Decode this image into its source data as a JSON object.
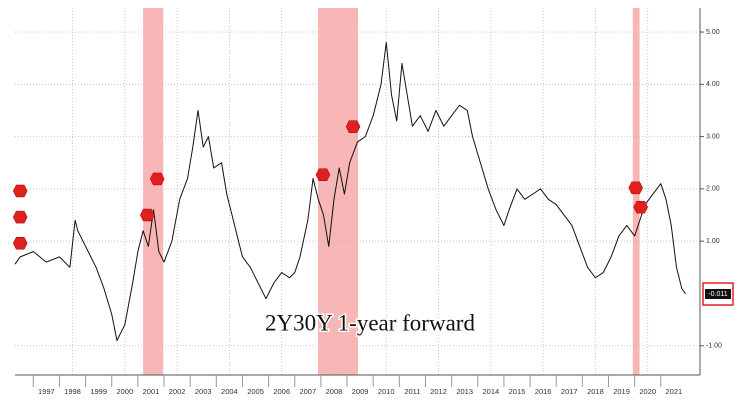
{
  "chart_data": {
    "type": "line",
    "annotation": "2Y30Y 1-year forward",
    "x": [
      1996.3,
      1996.5,
      1997,
      1997.5,
      1998,
      1998.4,
      1998.6,
      1998.7,
      1999,
      1999.4,
      1999.7,
      2000,
      2000.2,
      2000.5,
      2000.8,
      2001,
      2001.2,
      2001.4,
      2001.6,
      2001.8,
      2002,
      2002.3,
      2002.6,
      2002.9,
      2003.1,
      2003.3,
      2003.5,
      2003.7,
      2003.9,
      2004.2,
      2004.4,
      2004.7,
      2005,
      2005.3,
      2005.6,
      2005.9,
      2006.2,
      2006.5,
      2006.8,
      2007,
      2007.2,
      2007.5,
      2007.7,
      2007.9,
      2008.1,
      2008.3,
      2008.5,
      2008.7,
      2008.9,
      2009.1,
      2009.4,
      2009.7,
      2010,
      2010.3,
      2010.5,
      2010.7,
      2010.9,
      2011.1,
      2011.3,
      2011.5,
      2011.8,
      2012.1,
      2012.4,
      2012.7,
      2013,
      2013.3,
      2013.6,
      2013.8,
      2014.1,
      2014.4,
      2014.7,
      2015,
      2015.2,
      2015.5,
      2015.8,
      2016.1,
      2016.4,
      2016.7,
      2017,
      2017.3,
      2017.6,
      2017.9,
      2018.2,
      2018.5,
      2018.8,
      2019.1,
      2019.4,
      2019.7,
      2020,
      2020.2,
      2020.4,
      2020.7,
      2021,
      2021.2,
      2021.4,
      2021.6,
      2021.8,
      2021.95
    ],
    "series": [
      {
        "color": "#111111",
        "values": [
          0.56,
          0.7,
          0.8,
          0.6,
          0.7,
          0.5,
          1.4,
          1.2,
          0.9,
          0.5,
          0.1,
          -0.4,
          -0.9,
          -0.6,
          0.2,
          0.8,
          1.2,
          0.9,
          1.6,
          0.8,
          0.6,
          1.0,
          1.8,
          2.2,
          2.8,
          3.5,
          2.8,
          3.0,
          2.4,
          2.5,
          1.9,
          1.3,
          0.7,
          0.5,
          0.2,
          -0.1,
          0.2,
          0.4,
          0.3,
          0.4,
          0.7,
          1.4,
          2.2,
          1.8,
          1.5,
          0.9,
          1.8,
          2.4,
          1.9,
          2.5,
          2.9,
          3.0,
          3.4,
          4.0,
          4.8,
          3.8,
          3.3,
          4.4,
          3.8,
          3.2,
          3.4,
          3.1,
          3.5,
          3.2,
          3.4,
          3.6,
          3.5,
          3.0,
          2.5,
          2.0,
          1.6,
          1.3,
          1.6,
          2.0,
          1.8,
          1.9,
          2.0,
          1.8,
          1.7,
          1.5,
          1.3,
          0.9,
          0.5,
          0.3,
          0.4,
          0.7,
          1.1,
          1.3,
          1.1,
          1.4,
          1.7,
          1.9,
          2.1,
          1.8,
          1.3,
          0.5,
          0.1,
          -0.011
        ]
      }
    ],
    "shaded_ranges": [
      [
        2001.2,
        2001.97
      ],
      [
        2007.89,
        2009.42
      ],
      [
        2019.93,
        2020.19
      ]
    ],
    "shade_color": "#f8b6b6",
    "markers": {
      "color": "#e02020",
      "x": [
        1996.5,
        1996.5,
        1996.5,
        2001.36,
        2001.74,
        2008.08,
        2009.23,
        2020.04,
        2020.23
      ],
      "y": [
        1.96,
        1.46,
        0.96,
        1.5,
        2.19,
        2.27,
        3.19,
        2.02,
        1.65
      ]
    },
    "xlim": [
      1996.3,
      2022.5
    ],
    "xticks": [
      {
        "value": 1997.5,
        "label": "1997"
      },
      {
        "value": 1998.5,
        "label": "1998"
      },
      {
        "value": 1999.5,
        "label": "1999"
      },
      {
        "value": 2000.5,
        "label": "2000"
      },
      {
        "value": 2001.5,
        "label": "2001"
      },
      {
        "value": 2002.5,
        "label": "2002"
      },
      {
        "value": 2003.5,
        "label": "2003"
      },
      {
        "value": 2004.5,
        "label": "2004"
      },
      {
        "value": 2005.5,
        "label": "2005"
      },
      {
        "value": 2006.5,
        "label": "2006"
      },
      {
        "value": 2007.5,
        "label": "2007"
      },
      {
        "value": 2008.5,
        "label": "2008"
      },
      {
        "value": 2009.5,
        "label": "2009"
      },
      {
        "value": 2010.5,
        "label": "2010"
      },
      {
        "value": 2011.5,
        "label": "2011"
      },
      {
        "value": 2012.5,
        "label": "2012"
      },
      {
        "value": 2013.5,
        "label": "2013"
      },
      {
        "value": 2014.5,
        "label": "2014"
      },
      {
        "value": 2015.5,
        "label": "2015"
      },
      {
        "value": 2016.5,
        "label": "2016"
      },
      {
        "value": 2017.5,
        "label": "2017"
      },
      {
        "value": 2018.5,
        "label": "2018"
      },
      {
        "value": 2019.5,
        "label": "2019"
      },
      {
        "value": 2020.5,
        "label": "2020"
      },
      {
        "value": 2021.5,
        "label": "2021"
      }
    ],
    "ylim": [
      -1.56,
      5.46
    ],
    "yticks": [
      {
        "value": 5,
        "label": "5.00"
      },
      {
        "value": 4,
        "label": "4.00"
      },
      {
        "value": 3,
        "label": "3.00"
      },
      {
        "value": 2,
        "label": "2.00"
      },
      {
        "value": 1,
        "label": "1.00"
      },
      {
        "value": -1,
        "label": "-1.00"
      }
    ],
    "grid": true
  }
}
